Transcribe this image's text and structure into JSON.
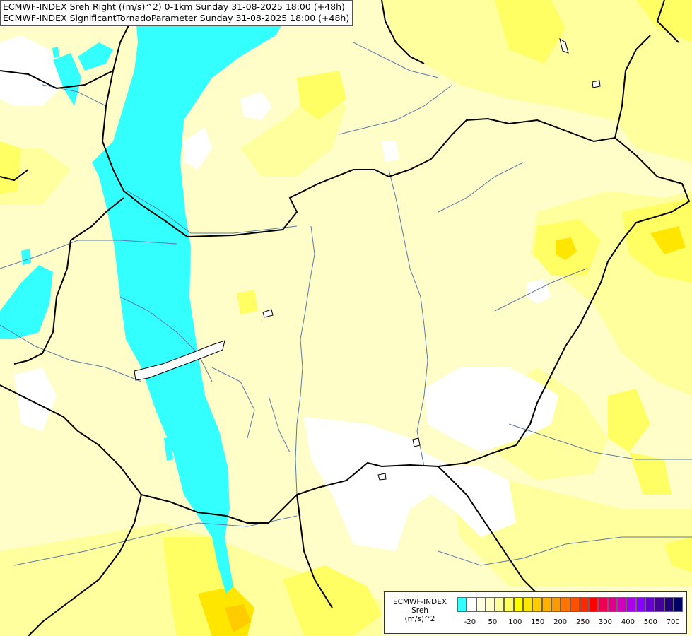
{
  "title_lines": [
    "ECMWF-INDEX Sreh Right ((m/s)^2) 0-1km Sunday 31-08-2025 18:00 (+48h)",
    "ECMWF-INDEX SignificantTornadoParameter Sunday 31-08-2025 18:00 (+48h)"
  ],
  "legend": {
    "title_lines": [
      "ECMWF-INDEX",
      "Sreh",
      "(m/s)^2"
    ],
    "colors": [
      "#33ffff",
      "#ffffff",
      "#ffffe0",
      "#fffec8",
      "#ffff9e",
      "#ffff64",
      "#ffff00",
      "#ffe600",
      "#ffcc00",
      "#ffb300",
      "#ff9900",
      "#ff7300",
      "#ff5000",
      "#ff2800",
      "#ff0000",
      "#ee0055",
      "#dd0088",
      "#cc00bb",
      "#aa00ee",
      "#8800ff",
      "#6600cc",
      "#440099",
      "#220077",
      "#000066"
    ],
    "tick_labels": [
      "-20",
      "50",
      "100",
      "150",
      "200",
      "250",
      "300",
      "400",
      "500",
      "700"
    ]
  },
  "colors": {
    "background": "#fffec8",
    "moist_yellow": "#ffff9e",
    "strong_yellow": "#ffff64",
    "orange_yellow": "#ffe600",
    "cyan_negative": "#33ffff",
    "white_low": "#ffffff",
    "border_line": "#000000",
    "river_line": "#5a7aa8"
  }
}
